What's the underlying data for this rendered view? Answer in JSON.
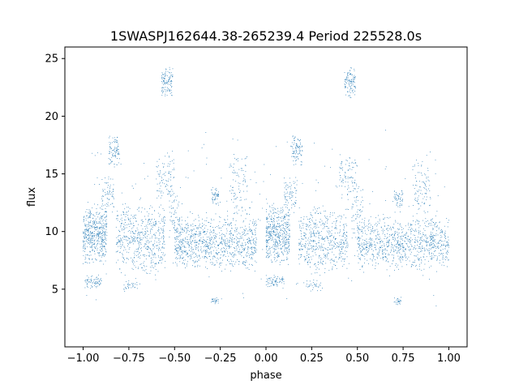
{
  "chart_data": {
    "type": "scatter",
    "title": "1SWASPJ162644.38-265239.4 Period 225528.0s",
    "xlabel": "phase",
    "ylabel": "flux",
    "xlim": [
      -1.1,
      1.1
    ],
    "ylim": [
      0.0,
      26.0
    ],
    "xticks": [
      "−1.00",
      "−0.75",
      "−0.50",
      "−0.25",
      "0.00",
      "0.25",
      "0.50",
      "0.75",
      "1.00"
    ],
    "xtick_values": [
      -1.0,
      -0.75,
      -0.5,
      -0.25,
      0.0,
      0.25,
      0.5,
      0.75,
      1.0
    ],
    "yticks": [
      "5",
      "10",
      "15",
      "20",
      "25"
    ],
    "ytick_values": [
      5,
      10,
      15,
      20,
      25
    ],
    "grid": false,
    "marker_color": "#1f77b4",
    "series": [
      {
        "clusters": [
          {
            "x": [
              -1.0,
              -0.87
            ],
            "y": [
              7.0,
              12.5
            ],
            "n": 480
          },
          {
            "x": [
              -0.99,
              -0.9
            ],
            "y": [
              5.0,
              6.3
            ],
            "n": 70
          },
          {
            "x": [
              -0.9,
              -0.83
            ],
            "y": [
              11.5,
              15.0
            ],
            "n": 70
          },
          {
            "x": [
              -0.86,
              -0.8
            ],
            "y": [
              15.5,
              18.5
            ],
            "n": 90
          },
          {
            "x": [
              -0.82,
              -0.55
            ],
            "y": [
              6.0,
              12.5
            ],
            "n": 520
          },
          {
            "x": [
              -0.78,
              -0.7
            ],
            "y": [
              4.8,
              6.0
            ],
            "n": 30
          },
          {
            "x": [
              -0.6,
              -0.5
            ],
            "y": [
              12.5,
              17.0
            ],
            "n": 90
          },
          {
            "x": [
              -0.57,
              -0.51
            ],
            "y": [
              21.5,
              24.5
            ],
            "n": 110
          },
          {
            "x": [
              -0.53,
              -0.47
            ],
            "y": [
              9.0,
              14.0
            ],
            "n": 60
          },
          {
            "x": [
              -0.5,
              -0.05
            ],
            "y": [
              6.5,
              11.5
            ],
            "n": 900
          },
          {
            "x": [
              -0.3,
              -0.25
            ],
            "y": [
              12.0,
              14.0
            ],
            "n": 50
          },
          {
            "x": [
              -0.3,
              -0.26
            ],
            "y": [
              3.6,
              4.3
            ],
            "n": 25
          },
          {
            "x": [
              -0.2,
              -0.1
            ],
            "y": [
              10.5,
              17.0
            ],
            "n": 90
          },
          {
            "x": [
              0.0,
              0.13
            ],
            "y": [
              7.0,
              12.5
            ],
            "n": 480
          },
          {
            "x": [
              0.0,
              0.1
            ],
            "y": [
              5.0,
              6.3
            ],
            "n": 70
          },
          {
            "x": [
              0.1,
              0.17
            ],
            "y": [
              11.5,
              15.0
            ],
            "n": 70
          },
          {
            "x": [
              0.14,
              0.2
            ],
            "y": [
              15.5,
              18.5
            ],
            "n": 90
          },
          {
            "x": [
              0.18,
              0.45
            ],
            "y": [
              6.0,
              12.5
            ],
            "n": 520
          },
          {
            "x": [
              0.22,
              0.3
            ],
            "y": [
              4.8,
              6.0
            ],
            "n": 30
          },
          {
            "x": [
              0.4,
              0.5
            ],
            "y": [
              12.5,
              17.0
            ],
            "n": 90
          },
          {
            "x": [
              0.43,
              0.49
            ],
            "y": [
              21.5,
              24.5
            ],
            "n": 110
          },
          {
            "x": [
              0.47,
              0.53
            ],
            "y": [
              9.0,
              14.0
            ],
            "n": 60
          },
          {
            "x": [
              0.5,
              1.0
            ],
            "y": [
              6.5,
              11.5
            ],
            "n": 900
          },
          {
            "x": [
              0.7,
              0.75
            ],
            "y": [
              12.0,
              14.0
            ],
            "n": 50
          },
          {
            "x": [
              0.7,
              0.74
            ],
            "y": [
              3.6,
              4.3
            ],
            "n": 25
          },
          {
            "x": [
              0.8,
              0.9
            ],
            "y": [
              10.5,
              17.0
            ],
            "n": 90
          },
          {
            "x": [
              -1.0,
              1.0
            ],
            "y": [
              2.5,
              20.0
            ],
            "n": 260
          }
        ]
      }
    ]
  }
}
